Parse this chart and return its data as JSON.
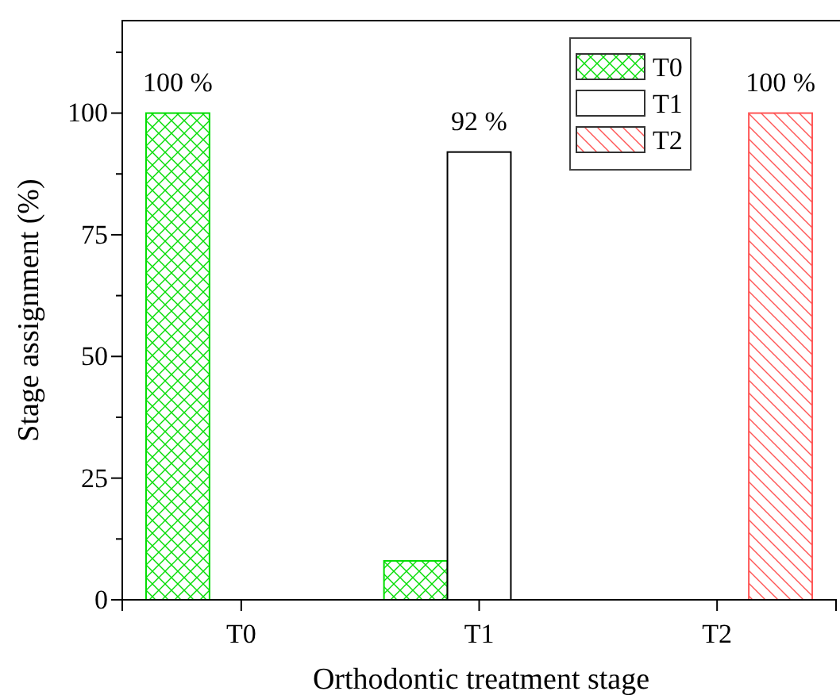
{
  "chart_data": {
    "type": "bar",
    "xlabel": "Orthodontic treatment stage",
    "ylabel": "Stage assignment (%)",
    "categories": [
      "T0",
      "T1",
      "T2"
    ],
    "series": [
      {
        "name": "T0",
        "color": "#00dd00",
        "values": [
          100,
          8,
          0
        ],
        "value_labels": [
          "100 %",
          null,
          null
        ]
      },
      {
        "name": "T1",
        "color": "#000000",
        "values": [
          0,
          92,
          0
        ],
        "value_labels": [
          null,
          "92 %",
          null
        ]
      },
      {
        "name": "T2",
        "color": "#ff5555",
        "values": [
          0,
          0,
          100
        ],
        "value_labels": [
          null,
          null,
          "100 %"
        ]
      }
    ],
    "ylim": [
      0,
      119
    ],
    "yticks": [
      0,
      {
        "value": 12.5,
        "label": null
      },
      25,
      {
        "value": 37.5,
        "label": null
      },
      50,
      {
        "value": 62.5,
        "label": null
      },
      75,
      {
        "value": 87.5,
        "label": null
      },
      100,
      {
        "value": 112.5,
        "label": null
      }
    ],
    "grid": false,
    "legend": "top right"
  }
}
